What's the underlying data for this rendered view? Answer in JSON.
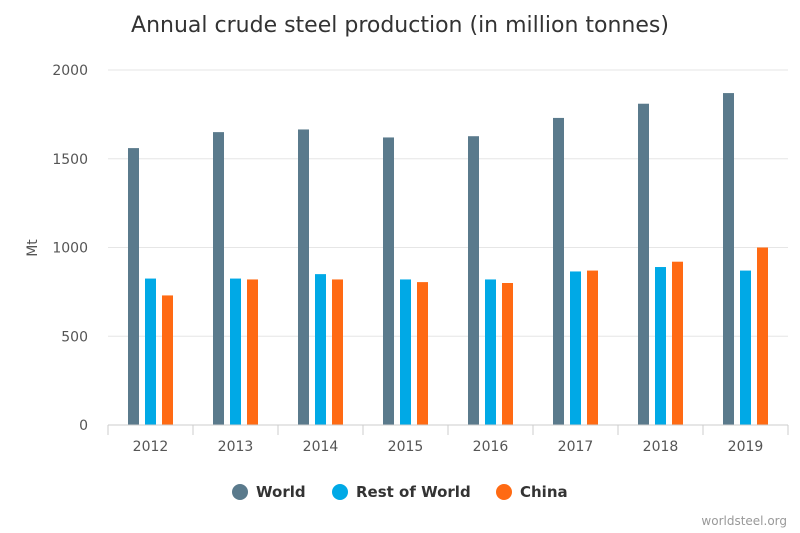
{
  "chart_data": {
    "type": "bar",
    "title": "Annual crude steel production (in million tonnes)",
    "xlabel": "",
    "ylabel": "Mt",
    "ylim": [
      0,
      2000
    ],
    "yticks": [
      "0",
      "500",
      "1000",
      "1500",
      "2000"
    ],
    "categories": [
      "2012",
      "2013",
      "2014",
      "2015",
      "2016",
      "2017",
      "2018",
      "2019"
    ],
    "series": [
      {
        "name": "World",
        "color": "#5a7a8c",
        "values": [
          1560,
          1650,
          1665,
          1620,
          1627,
          1730,
          1810,
          1870
        ]
      },
      {
        "name": "Rest of World",
        "color": "#00a9e6",
        "values": [
          825,
          825,
          850,
          820,
          820,
          865,
          890,
          870
        ]
      },
      {
        "name": "China",
        "color": "#ff6a13",
        "values": [
          730,
          820,
          820,
          805,
          800,
          870,
          920,
          1000
        ]
      }
    ],
    "grid": true,
    "legend_position": "bottom-center"
  },
  "credit": "worldsteel.org"
}
